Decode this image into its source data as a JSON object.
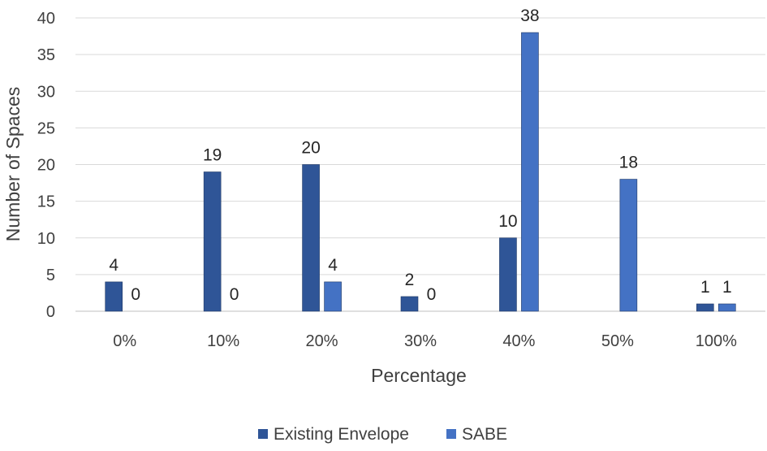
{
  "chart_data": {
    "type": "bar",
    "title": "",
    "xlabel": "Percentage",
    "ylabel": "Number of Spaces",
    "categories": [
      "0%",
      "10%",
      "20%",
      "30%",
      "40%",
      "50%",
      "100%"
    ],
    "series": [
      {
        "name": "Existing Envelope",
        "color": "#2f5597",
        "values": [
          4,
          19,
          20,
          2,
          10,
          null,
          1
        ],
        "labels": [
          "4",
          "19",
          "20",
          "2",
          "10",
          "",
          "1"
        ]
      },
      {
        "name": "SABE",
        "color": "#4472c4",
        "values": [
          0,
          0,
          4,
          0,
          38,
          18,
          1
        ],
        "labels": [
          "0",
          "0",
          "4",
          "0",
          "38",
          "18",
          "1"
        ]
      }
    ],
    "ylim": [
      0,
      40
    ],
    "yticks": [
      0,
      5,
      10,
      15,
      20,
      25,
      30,
      35,
      40
    ],
    "grid": true,
    "legend": "bottom"
  }
}
